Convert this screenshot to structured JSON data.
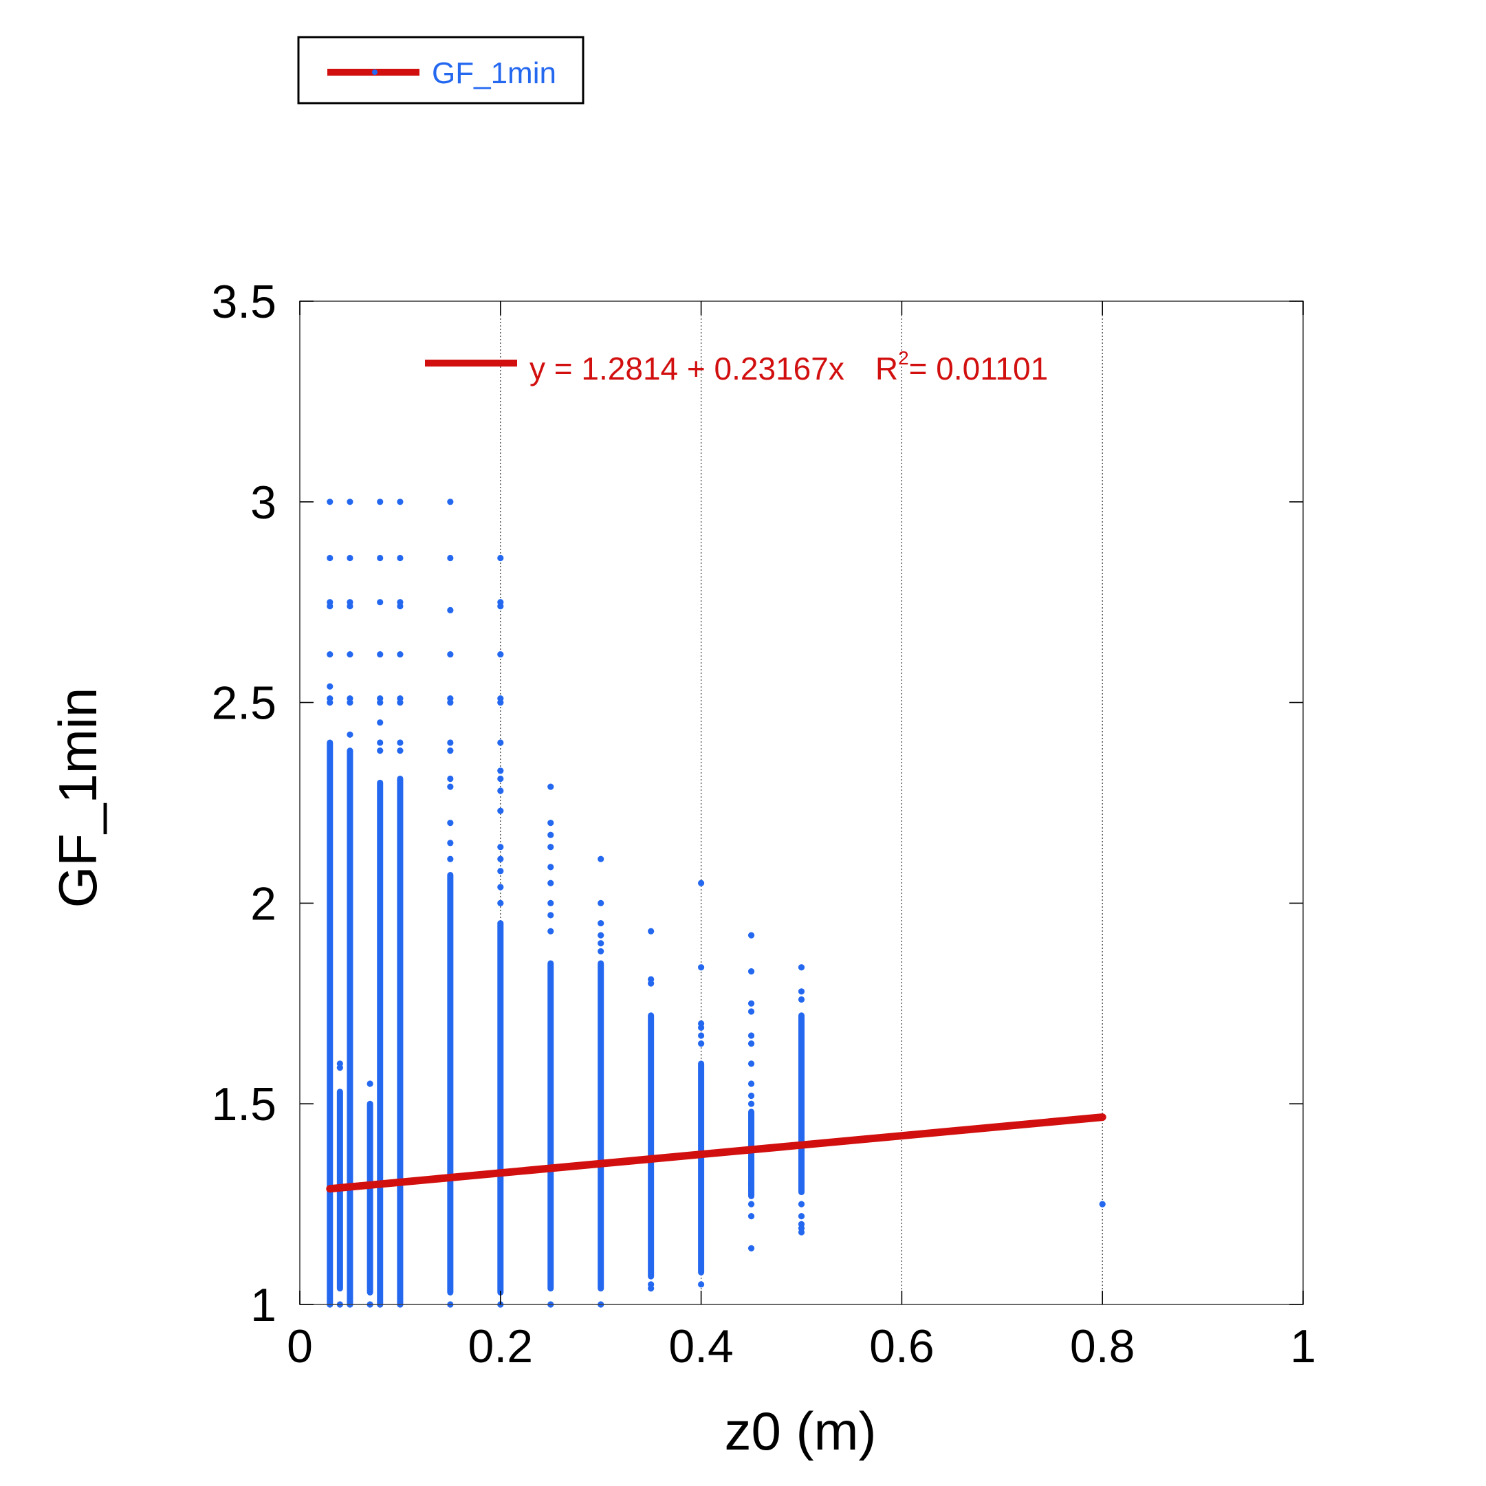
{
  "chart_data": {
    "type": "scatter",
    "xlabel": "z0 (m)",
    "ylabel": "GF_1min",
    "xlim": [
      0,
      1
    ],
    "ylim": [
      1,
      3.5
    ],
    "x_ticks": [
      "0",
      "0.2",
      "0.4",
      "0.6",
      "0.8",
      "1"
    ],
    "y_ticks": [
      "1",
      "1.5",
      "2",
      "2.5",
      "3",
      "3.5"
    ],
    "x_tick_values": [
      0,
      0.2,
      0.4,
      0.6,
      0.8,
      1
    ],
    "y_tick_values": [
      1,
      1.5,
      2,
      2.5,
      3,
      3.5
    ],
    "grid": "vertical dotted lines at x ticks",
    "legend": {
      "position": "top-left",
      "label": "GF_1min"
    },
    "fit": {
      "label": "y = 1.2814 + 0.23167x",
      "r2_prefix": "R",
      "r2_sup": "2",
      "r2_value": "= 0.01101",
      "intercept": 1.2814,
      "slope": 0.23167,
      "x_range": [
        0.03,
        0.8
      ]
    },
    "series": [
      {
        "name": "GF_1min",
        "point_groups": [
          {
            "x": 0.03,
            "dense": [
              1.0,
              2.4
            ],
            "sparse": [
              3.0,
              2.86,
              2.75,
              2.74,
              2.62,
              2.54,
              2.5,
              2.51,
              1.0
            ]
          },
          {
            "x": 0.04,
            "dense": [
              1.04,
              1.53
            ],
            "sparse": [
              1.6,
              1.59,
              1.0
            ]
          },
          {
            "x": 0.05,
            "dense": [
              1.0,
              2.38
            ],
            "sparse": [
              3.0,
              2.86,
              2.75,
              2.74,
              2.62,
              2.51,
              2.5,
              2.42,
              1.0
            ]
          },
          {
            "x": 0.07,
            "dense": [
              1.03,
              1.5
            ],
            "sparse": [
              1.55,
              1.0
            ]
          },
          {
            "x": 0.08,
            "dense": [
              1.0,
              2.3
            ],
            "sparse": [
              3.0,
              2.86,
              2.75,
              2.62,
              2.51,
              2.5,
              2.45,
              2.4,
              2.38,
              1.0
            ]
          },
          {
            "x": 0.1,
            "dense": [
              1.0,
              2.31
            ],
            "sparse": [
              3.0,
              2.86,
              2.75,
              2.74,
              2.62,
              2.51,
              2.5,
              2.4,
              2.38,
              1.0
            ]
          },
          {
            "x": 0.15,
            "dense": [
              1.03,
              2.07
            ],
            "sparse": [
              3.0,
              2.86,
              2.73,
              2.62,
              2.51,
              2.5,
              2.4,
              2.38,
              2.31,
              2.29,
              2.2,
              2.15,
              2.11,
              1.0
            ]
          },
          {
            "x": 0.2,
            "dense": [
              1.03,
              1.95
            ],
            "sparse": [
              2.86,
              2.75,
              2.74,
              2.62,
              2.51,
              2.5,
              2.4,
              2.33,
              2.31,
              2.28,
              2.23,
              2.14,
              2.11,
              2.08,
              2.04,
              2.0,
              1.0
            ]
          },
          {
            "x": 0.25,
            "dense": [
              1.04,
              1.85
            ],
            "sparse": [
              2.29,
              2.2,
              2.17,
              2.14,
              2.09,
              2.05,
              2.0,
              1.97,
              1.93,
              1.0
            ]
          },
          {
            "x": 0.3,
            "dense": [
              1.04,
              1.85
            ],
            "sparse": [
              2.11,
              2.0,
              1.95,
              1.92,
              1.9,
              1.88,
              1.0
            ]
          },
          {
            "x": 0.35,
            "dense": [
              1.07,
              1.72
            ],
            "sparse": [
              1.93,
              1.81,
              1.8,
              1.05,
              1.04
            ]
          },
          {
            "x": 0.4,
            "dense": [
              1.08,
              1.6
            ],
            "sparse": [
              2.05,
              1.84,
              1.7,
              1.69,
              1.67,
              1.65,
              1.05
            ]
          },
          {
            "x": 0.45,
            "dense": [
              1.27,
              1.48
            ],
            "sparse": [
              1.92,
              1.83,
              1.75,
              1.73,
              1.67,
              1.65,
              1.6,
              1.55,
              1.52,
              1.5,
              1.38,
              1.3,
              1.25,
              1.22,
              1.14
            ]
          },
          {
            "x": 0.5,
            "dense": [
              1.28,
              1.72
            ],
            "sparse": [
              1.84,
              1.78,
              1.76,
              1.25,
              1.22,
              1.2,
              1.19,
              1.18
            ]
          },
          {
            "x": 0.8,
            "dense": null,
            "sparse": [
              1.25
            ]
          }
        ]
      }
    ],
    "colors": {
      "points": "#2468f0",
      "fit": "#d20f0f",
      "frame": "#000000"
    }
  }
}
